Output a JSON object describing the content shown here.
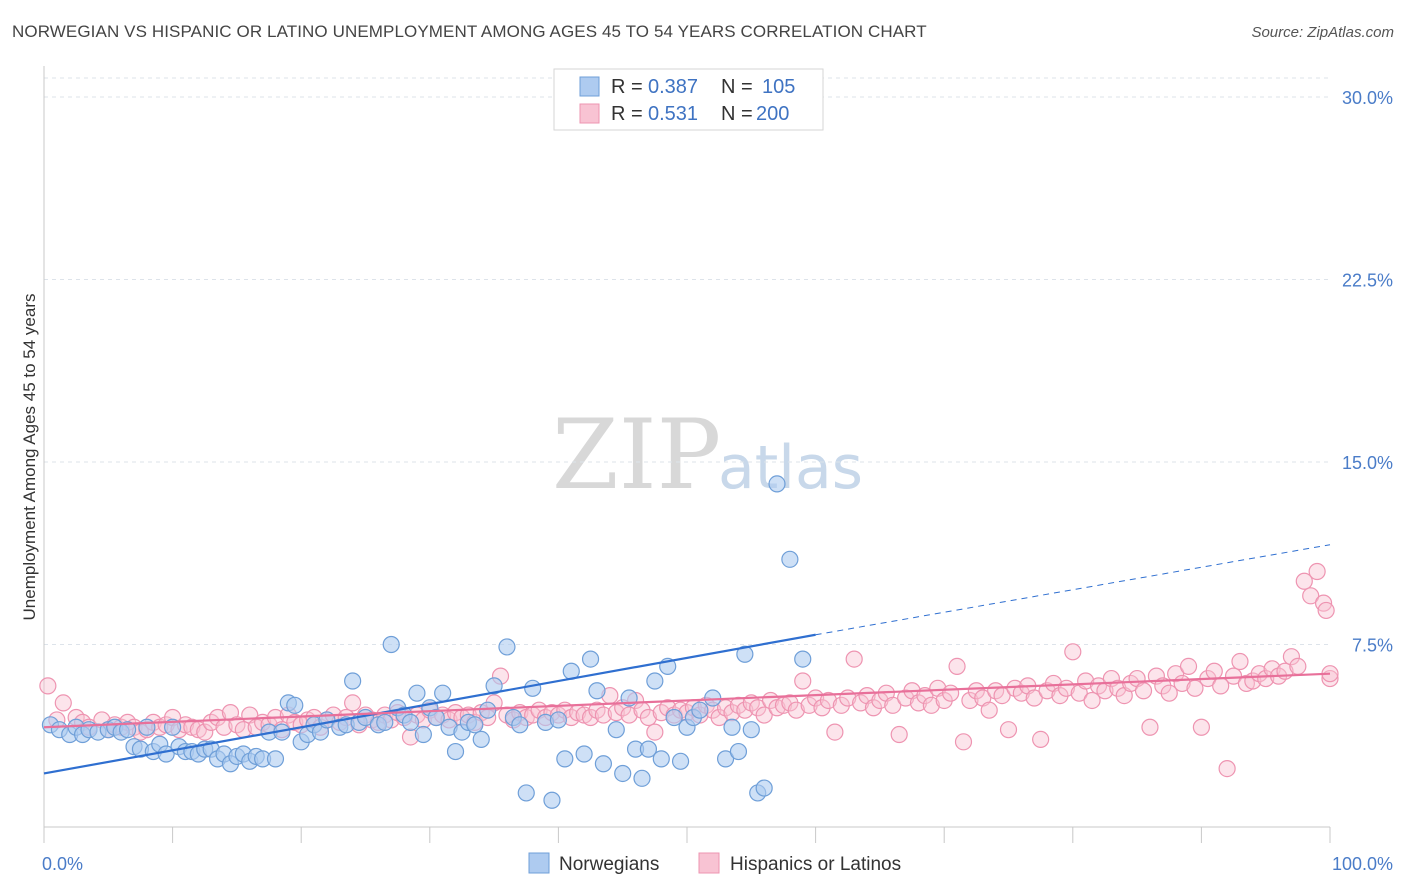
{
  "title": "NORWEGIAN VS HISPANIC OR LATINO UNEMPLOYMENT AMONG AGES 45 TO 54 YEARS CORRELATION CHART",
  "source": "Source: ZipAtlas.com",
  "watermark": {
    "zip": "ZIP",
    "atlas": "atlas"
  },
  "colors": {
    "blue_fill": "#aecbf0",
    "blue_stroke": "#6f9fd8",
    "blue_line": "#2f6fd0",
    "pink_fill": "#f8c3d3",
    "pink_stroke": "#ee94b1",
    "pink_line": "#e8709a",
    "grid": "#dde3ea",
    "axis_label": "#4a7cc8"
  },
  "legend": {
    "rows": [
      {
        "r_label": "R =",
        "r_value": "0.387",
        "n_label": "N =",
        "n_value": "105"
      },
      {
        "r_label": "R =",
        "r_value": "0.531",
        "n_label": "N =",
        "n_value": "200"
      }
    ]
  },
  "bottom_legend": [
    "Norwegians",
    "Hispanics or Latinos"
  ],
  "chart_data": {
    "type": "scatter",
    "title": "NORWEGIAN VS HISPANIC OR LATINO UNEMPLOYMENT AMONG AGES 45 TO 54 YEARS CORRELATION CHART",
    "xlabel": "",
    "ylabel": "Unemployment Among Ages 45 to 54 years",
    "xlim": [
      0,
      100
    ],
    "ylim": [
      0,
      30
    ],
    "x_tick_labels": [
      "0.0%",
      "100.0%"
    ],
    "y_ticks": [
      7.5,
      15.0,
      22.5,
      30.0
    ],
    "y_tick_labels": [
      "7.5%",
      "15.0%",
      "22.5%",
      "30.0%"
    ],
    "grid": true,
    "legend_position": "top-center",
    "series": [
      {
        "name": "Norwegians",
        "r": 0.387,
        "n": 105,
        "trend": {
          "x": [
            0,
            60
          ],
          "y": [
            2.2,
            7.9
          ],
          "dashed_extension_to": [
            100,
            11.6
          ]
        },
        "points": [
          [
            0.5,
            4.2
          ],
          [
            1.2,
            4.0
          ],
          [
            2.0,
            3.8
          ],
          [
            2.5,
            4.1
          ],
          [
            3.0,
            3.8
          ],
          [
            3.5,
            4.0
          ],
          [
            4.2,
            3.9
          ],
          [
            5.0,
            4.0
          ],
          [
            5.5,
            4.1
          ],
          [
            6.0,
            3.9
          ],
          [
            6.5,
            4.0
          ],
          [
            7.0,
            3.3
          ],
          [
            7.5,
            3.2
          ],
          [
            8.0,
            4.1
          ],
          [
            8.5,
            3.1
          ],
          [
            9.0,
            3.4
          ],
          [
            9.5,
            3.0
          ],
          [
            10.0,
            4.1
          ],
          [
            10.5,
            3.3
          ],
          [
            11.0,
            3.1
          ],
          [
            11.5,
            3.1
          ],
          [
            12.0,
            3.0
          ],
          [
            12.5,
            3.2
          ],
          [
            13.0,
            3.2
          ],
          [
            13.5,
            2.8
          ],
          [
            14.0,
            3.0
          ],
          [
            14.5,
            2.6
          ],
          [
            15.0,
            2.9
          ],
          [
            15.5,
            3.0
          ],
          [
            16.0,
            2.7
          ],
          [
            16.5,
            2.9
          ],
          [
            17.0,
            2.8
          ],
          [
            17.5,
            3.9
          ],
          [
            18.0,
            2.8
          ],
          [
            18.5,
            3.9
          ],
          [
            19.0,
            5.1
          ],
          [
            19.5,
            5.0
          ],
          [
            20.0,
            3.5
          ],
          [
            20.5,
            3.8
          ],
          [
            21.0,
            4.2
          ],
          [
            21.5,
            3.9
          ],
          [
            22.0,
            4.4
          ],
          [
            23.0,
            4.1
          ],
          [
            23.5,
            4.2
          ],
          [
            24.0,
            6.0
          ],
          [
            24.5,
            4.3
          ],
          [
            25.0,
            4.5
          ],
          [
            26.0,
            4.2
          ],
          [
            26.5,
            4.3
          ],
          [
            27.0,
            7.5
          ],
          [
            27.5,
            4.9
          ],
          [
            28.0,
            4.6
          ],
          [
            28.5,
            4.3
          ],
          [
            29.0,
            5.5
          ],
          [
            29.5,
            3.8
          ],
          [
            30.0,
            4.9
          ],
          [
            30.5,
            4.5
          ],
          [
            31.0,
            5.5
          ],
          [
            31.5,
            4.1
          ],
          [
            32.0,
            3.1
          ],
          [
            32.5,
            3.9
          ],
          [
            33.0,
            4.3
          ],
          [
            33.5,
            4.2
          ],
          [
            34.0,
            3.6
          ],
          [
            34.5,
            4.8
          ],
          [
            35.0,
            5.8
          ],
          [
            36.0,
            7.4
          ],
          [
            36.5,
            4.5
          ],
          [
            37.0,
            4.2
          ],
          [
            37.5,
            1.4
          ],
          [
            38.0,
            5.7
          ],
          [
            39.0,
            4.3
          ],
          [
            39.5,
            1.1
          ],
          [
            40.0,
            4.4
          ],
          [
            40.5,
            2.8
          ],
          [
            41.0,
            6.4
          ],
          [
            42.0,
            3.0
          ],
          [
            42.5,
            6.9
          ],
          [
            43.0,
            5.6
          ],
          [
            43.5,
            2.6
          ],
          [
            44.5,
            4.0
          ],
          [
            45.0,
            2.2
          ],
          [
            45.5,
            5.3
          ],
          [
            46.0,
            3.2
          ],
          [
            46.5,
            2.0
          ],
          [
            47.0,
            3.2
          ],
          [
            47.5,
            6.0
          ],
          [
            48.0,
            2.8
          ],
          [
            48.5,
            6.6
          ],
          [
            49.0,
            4.5
          ],
          [
            49.5,
            2.7
          ],
          [
            50.0,
            4.1
          ],
          [
            50.5,
            4.5
          ],
          [
            51.0,
            4.8
          ],
          [
            52.0,
            5.3
          ],
          [
            53.0,
            2.8
          ],
          [
            53.5,
            4.1
          ],
          [
            54.0,
            3.1
          ],
          [
            54.5,
            7.1
          ],
          [
            55.0,
            4.0
          ],
          [
            55.5,
            1.4
          ],
          [
            56.0,
            1.6
          ],
          [
            57.0,
            14.1
          ],
          [
            58.0,
            11.0
          ],
          [
            59.0,
            6.9
          ]
        ]
      },
      {
        "name": "Hispanics or Latinos",
        "r": 0.531,
        "n": 200,
        "trend": {
          "x": [
            0,
            100
          ],
          "y": [
            4.1,
            6.3
          ]
        },
        "points": [
          [
            0.3,
            5.8
          ],
          [
            1.0,
            4.4
          ],
          [
            1.5,
            5.1
          ],
          [
            2.5,
            4.5
          ],
          [
            3.0,
            4.3
          ],
          [
            3.5,
            4.1
          ],
          [
            4.5,
            4.4
          ],
          [
            5.0,
            4.0
          ],
          [
            5.5,
            4.2
          ],
          [
            6.0,
            4.1
          ],
          [
            6.5,
            4.3
          ],
          [
            7.0,
            4.1
          ],
          [
            7.5,
            3.9
          ],
          [
            8.0,
            4.0
          ],
          [
            8.5,
            4.3
          ],
          [
            9.0,
            4.1
          ],
          [
            9.5,
            4.2
          ],
          [
            10.0,
            4.5
          ],
          [
            10.5,
            4.0
          ],
          [
            11.0,
            4.2
          ],
          [
            11.5,
            4.1
          ],
          [
            12.0,
            4.0
          ],
          [
            12.5,
            3.9
          ],
          [
            13.0,
            4.3
          ],
          [
            13.5,
            4.5
          ],
          [
            14.0,
            4.1
          ],
          [
            14.5,
            4.7
          ],
          [
            15.0,
            4.2
          ],
          [
            15.5,
            4.0
          ],
          [
            16.0,
            4.6
          ],
          [
            16.5,
            4.1
          ],
          [
            17.0,
            4.3
          ],
          [
            17.5,
            4.2
          ],
          [
            18.0,
            4.5
          ],
          [
            18.5,
            4.0
          ],
          [
            19.0,
            4.6
          ],
          [
            19.5,
            4.3
          ],
          [
            20.0,
            4.2
          ],
          [
            20.5,
            4.4
          ],
          [
            21.0,
            4.5
          ],
          [
            21.5,
            4.1
          ],
          [
            22.0,
            4.4
          ],
          [
            22.5,
            4.6
          ],
          [
            23.0,
            4.3
          ],
          [
            23.5,
            4.5
          ],
          [
            24.0,
            5.1
          ],
          [
            24.5,
            4.2
          ],
          [
            25.0,
            4.6
          ],
          [
            25.5,
            4.4
          ],
          [
            26.0,
            4.3
          ],
          [
            26.5,
            4.6
          ],
          [
            27.0,
            4.4
          ],
          [
            27.5,
            4.7
          ],
          [
            28.0,
            4.5
          ],
          [
            28.5,
            3.7
          ],
          [
            29.0,
            4.6
          ],
          [
            29.5,
            4.4
          ],
          [
            30.0,
            4.8
          ],
          [
            30.5,
            4.5
          ],
          [
            31.0,
            4.6
          ],
          [
            31.5,
            4.4
          ],
          [
            32.0,
            4.7
          ],
          [
            32.5,
            4.5
          ],
          [
            33.0,
            4.6
          ],
          [
            33.5,
            4.3
          ],
          [
            34.0,
            4.7
          ],
          [
            34.5,
            4.5
          ],
          [
            35.0,
            5.1
          ],
          [
            35.5,
            6.2
          ],
          [
            36.0,
            4.6
          ],
          [
            36.5,
            4.4
          ],
          [
            37.0,
            4.7
          ],
          [
            37.5,
            4.5
          ],
          [
            38.0,
            4.6
          ],
          [
            38.5,
            4.8
          ],
          [
            39.0,
            4.5
          ],
          [
            39.5,
            4.7
          ],
          [
            40.0,
            4.6
          ],
          [
            40.5,
            4.8
          ],
          [
            41.0,
            4.5
          ],
          [
            41.5,
            4.7
          ],
          [
            42.0,
            4.6
          ],
          [
            42.5,
            4.5
          ],
          [
            43.0,
            4.8
          ],
          [
            43.5,
            4.6
          ],
          [
            44.0,
            5.4
          ],
          [
            44.5,
            4.7
          ],
          [
            45.0,
            4.9
          ],
          [
            45.5,
            4.6
          ],
          [
            46.0,
            5.2
          ],
          [
            46.5,
            4.8
          ],
          [
            47.0,
            4.5
          ],
          [
            47.5,
            3.9
          ],
          [
            48.0,
            4.7
          ],
          [
            48.5,
            4.9
          ],
          [
            49.0,
            4.6
          ],
          [
            49.5,
            4.8
          ],
          [
            50.0,
            4.7
          ],
          [
            50.5,
            4.9
          ],
          [
            51.0,
            4.6
          ],
          [
            51.5,
            5.0
          ],
          [
            52.0,
            4.8
          ],
          [
            52.5,
            4.5
          ],
          [
            53.0,
            4.9
          ],
          [
            53.5,
            4.7
          ],
          [
            54.0,
            5.0
          ],
          [
            54.5,
            4.8
          ],
          [
            55.0,
            5.1
          ],
          [
            55.5,
            4.9
          ],
          [
            56.0,
            4.6
          ],
          [
            56.5,
            5.2
          ],
          [
            57.0,
            4.9
          ],
          [
            57.5,
            5.0
          ],
          [
            58.0,
            5.1
          ],
          [
            58.5,
            4.8
          ],
          [
            59.0,
            6.0
          ],
          [
            59.5,
            5.0
          ],
          [
            60.0,
            5.3
          ],
          [
            60.5,
            4.9
          ],
          [
            61.0,
            5.2
          ],
          [
            61.5,
            3.9
          ],
          [
            62.0,
            5.0
          ],
          [
            62.5,
            5.3
          ],
          [
            63.0,
            6.9
          ],
          [
            63.5,
            5.1
          ],
          [
            64.0,
            5.4
          ],
          [
            64.5,
            4.9
          ],
          [
            65.0,
            5.2
          ],
          [
            65.5,
            5.5
          ],
          [
            66.0,
            5.0
          ],
          [
            66.5,
            3.8
          ],
          [
            67.0,
            5.3
          ],
          [
            67.5,
            5.6
          ],
          [
            68.0,
            5.1
          ],
          [
            68.5,
            5.4
          ],
          [
            69.0,
            5.0
          ],
          [
            69.5,
            5.7
          ],
          [
            70.0,
            5.2
          ],
          [
            70.5,
            5.5
          ],
          [
            71.0,
            6.6
          ],
          [
            71.5,
            3.5
          ],
          [
            72.0,
            5.2
          ],
          [
            72.5,
            5.6
          ],
          [
            73.0,
            5.3
          ],
          [
            73.5,
            4.8
          ],
          [
            74.0,
            5.6
          ],
          [
            74.5,
            5.4
          ],
          [
            75.0,
            4.0
          ],
          [
            75.5,
            5.7
          ],
          [
            76.0,
            5.5
          ],
          [
            76.5,
            5.8
          ],
          [
            77.0,
            5.3
          ],
          [
            77.5,
            3.6
          ],
          [
            78.0,
            5.6
          ],
          [
            78.5,
            5.9
          ],
          [
            79.0,
            5.4
          ],
          [
            79.5,
            5.7
          ],
          [
            80.0,
            7.2
          ],
          [
            80.5,
            5.5
          ],
          [
            81.0,
            6.0
          ],
          [
            81.5,
            5.2
          ],
          [
            82.0,
            5.8
          ],
          [
            82.5,
            5.6
          ],
          [
            83.0,
            6.1
          ],
          [
            83.5,
            5.7
          ],
          [
            84.0,
            5.4
          ],
          [
            84.5,
            5.9
          ],
          [
            85.0,
            6.1
          ],
          [
            85.5,
            5.6
          ],
          [
            86.0,
            4.1
          ],
          [
            86.5,
            6.2
          ],
          [
            87.0,
            5.8
          ],
          [
            87.5,
            5.5
          ],
          [
            88.0,
            6.3
          ],
          [
            88.5,
            5.9
          ],
          [
            89.0,
            6.6
          ],
          [
            89.5,
            5.7
          ],
          [
            90.0,
            4.1
          ],
          [
            90.5,
            6.1
          ],
          [
            91.0,
            6.4
          ],
          [
            91.5,
            5.8
          ],
          [
            92.0,
            2.4
          ],
          [
            92.5,
            6.2
          ],
          [
            93.0,
            6.8
          ],
          [
            93.5,
            5.9
          ],
          [
            94.0,
            6.0
          ],
          [
            94.5,
            6.3
          ],
          [
            95.0,
            6.1
          ],
          [
            95.5,
            6.5
          ],
          [
            96.0,
            6.2
          ],
          [
            96.5,
            6.4
          ],
          [
            97.0,
            7.0
          ],
          [
            97.5,
            6.6
          ],
          [
            98.0,
            10.1
          ],
          [
            98.5,
            9.5
          ],
          [
            99.0,
            10.5
          ],
          [
            99.5,
            9.2
          ],
          [
            99.7,
            8.9
          ],
          [
            100.0,
            6.1
          ],
          [
            100.0,
            6.3
          ]
        ]
      }
    ]
  }
}
